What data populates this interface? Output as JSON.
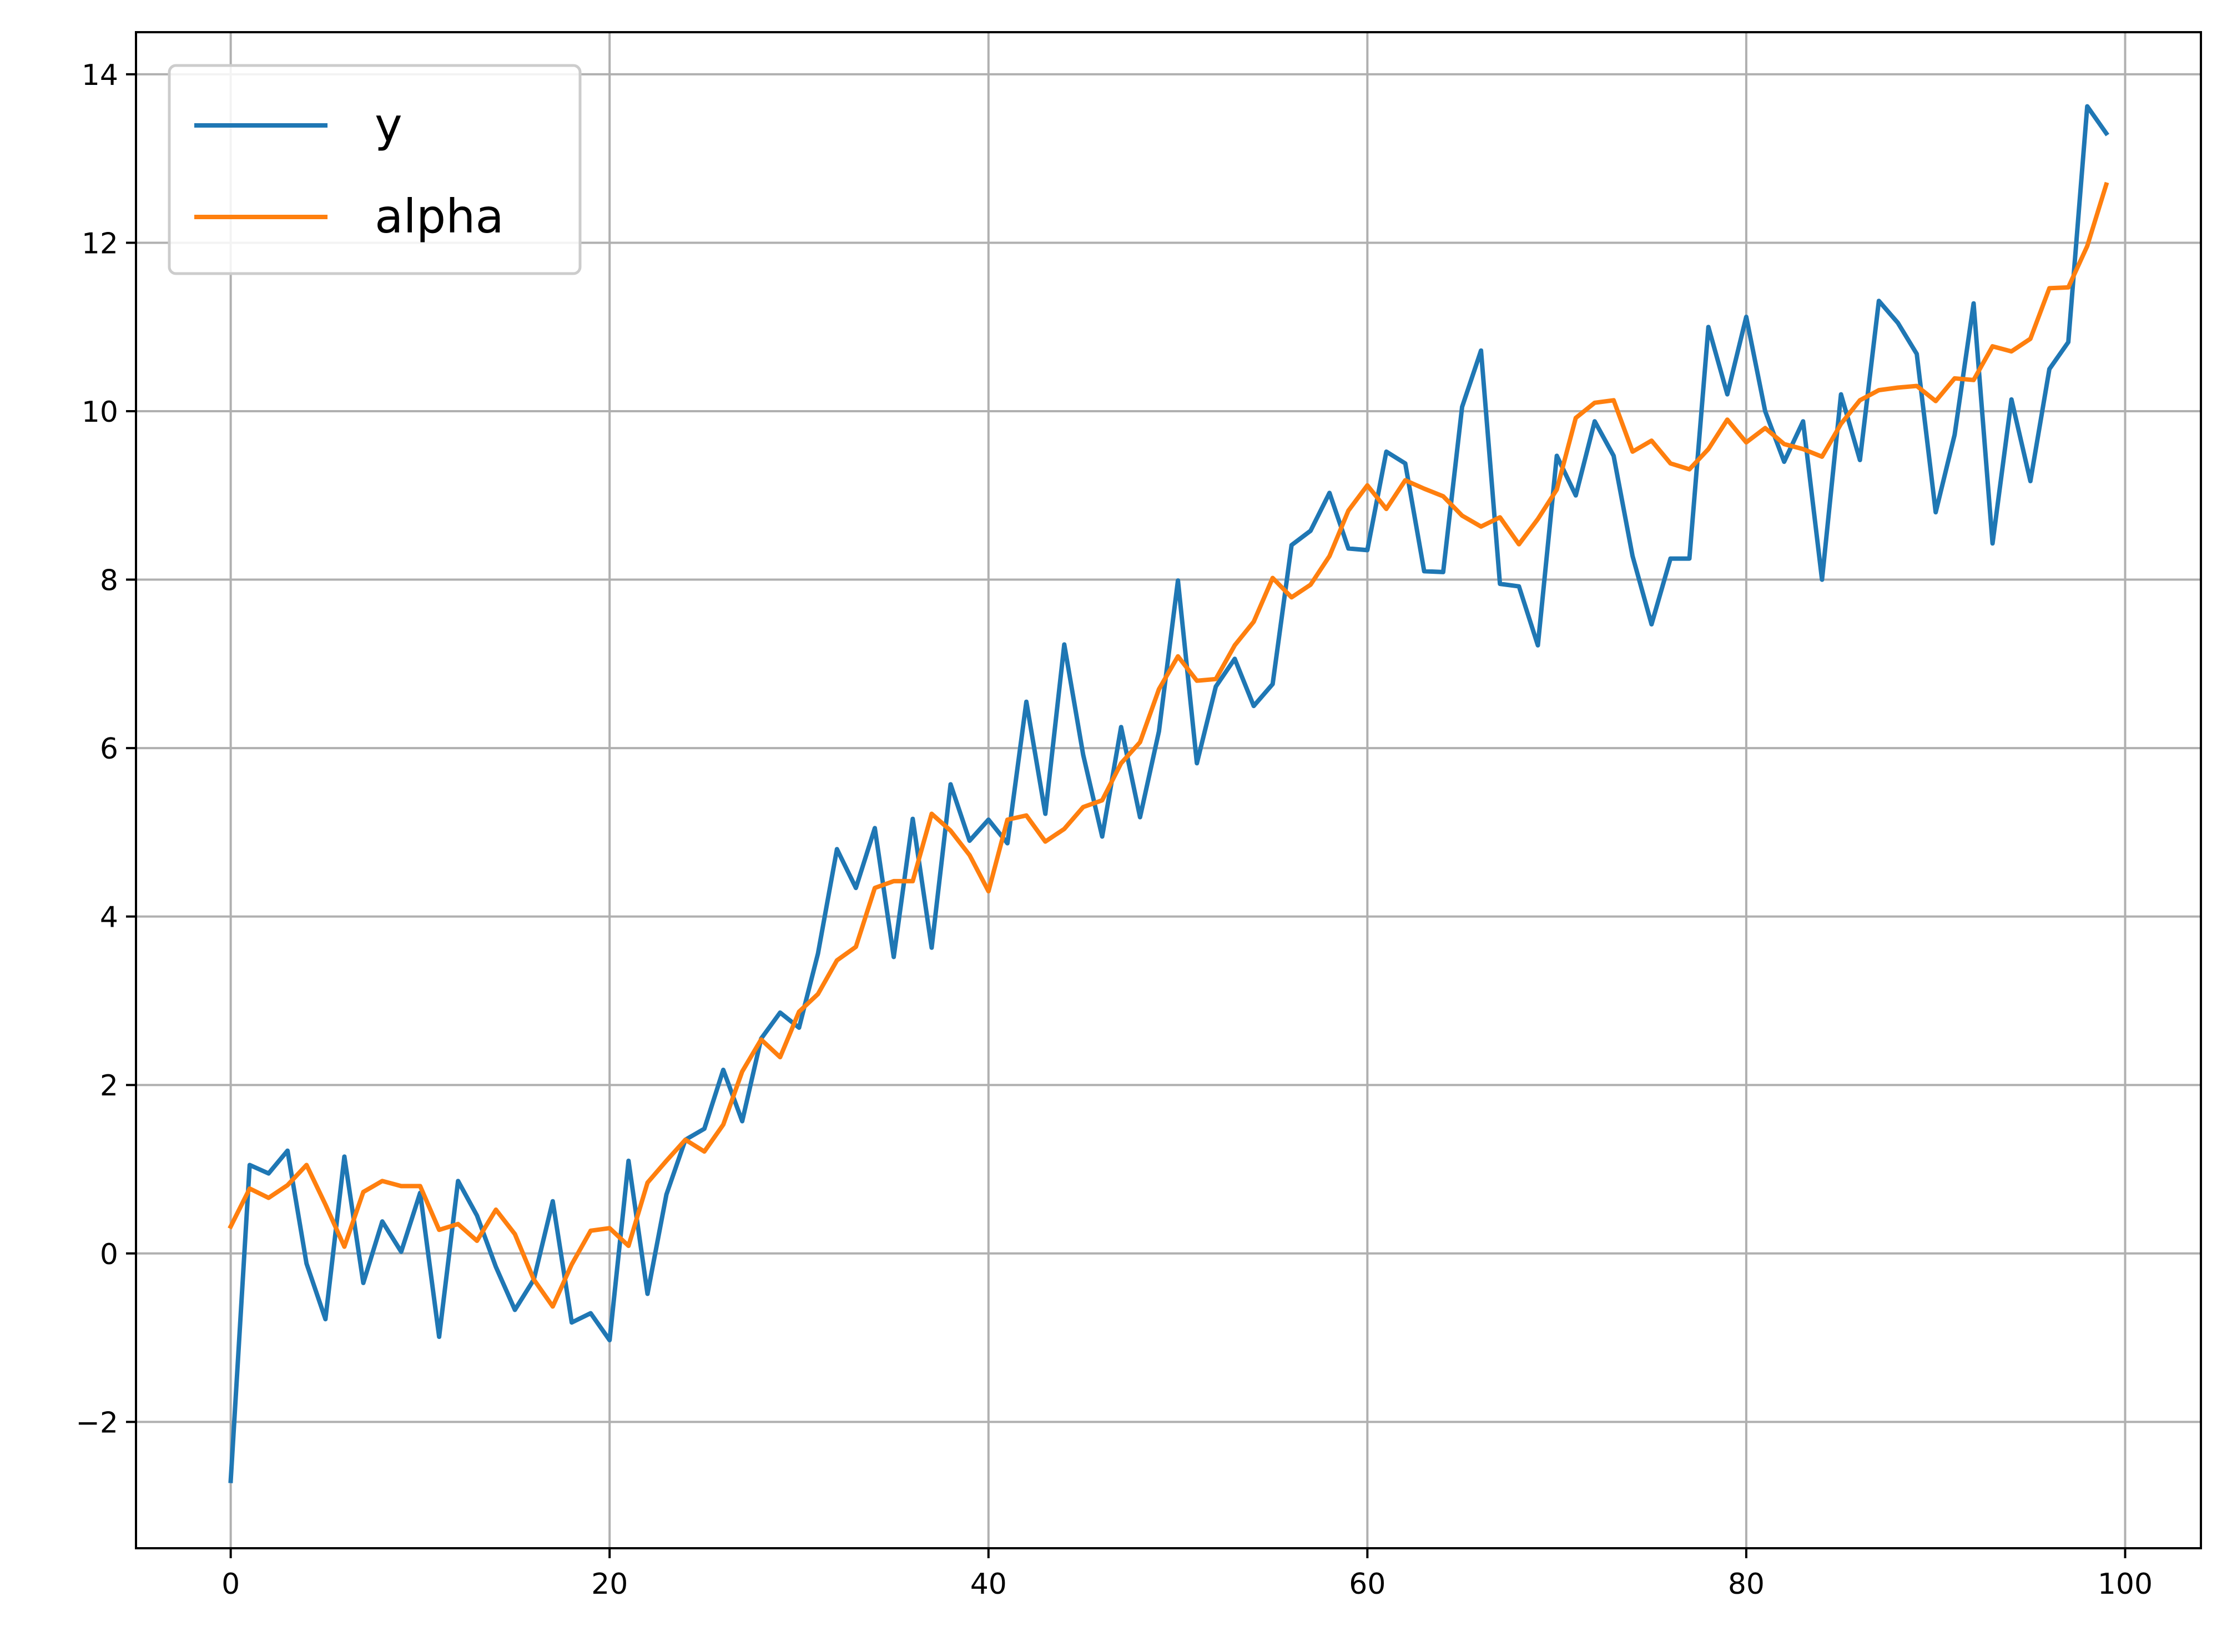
{
  "chart_data": {
    "type": "line",
    "title": "",
    "xlabel": "",
    "ylabel": "",
    "xlim": [
      -5,
      104
    ],
    "ylim": [
      -3.5,
      14.5
    ],
    "grid": true,
    "legend_position": "top-left",
    "x_ticks": [
      0,
      20,
      40,
      60,
      80,
      100
    ],
    "y_ticks": [
      -2,
      0,
      2,
      4,
      6,
      8,
      10,
      12,
      14
    ],
    "x_tick_labels": [
      "0",
      "20",
      "40",
      "60",
      "80",
      "100"
    ],
    "y_tick_labels": [
      "−2",
      "0",
      "2",
      "4",
      "6",
      "8",
      "10",
      "12",
      "14"
    ],
    "x": [
      0,
      1,
      2,
      3,
      4,
      5,
      6,
      7,
      8,
      9,
      10,
      11,
      12,
      13,
      14,
      15,
      16,
      17,
      18,
      19,
      20,
      21,
      22,
      23,
      24,
      25,
      26,
      27,
      28,
      29,
      30,
      31,
      32,
      33,
      34,
      35,
      36,
      37,
      38,
      39,
      40,
      41,
      42,
      43,
      44,
      45,
      46,
      47,
      48,
      49,
      50,
      51,
      52,
      53,
      54,
      55,
      56,
      57,
      58,
      59,
      60,
      61,
      62,
      63,
      64,
      65,
      66,
      67,
      68,
      69,
      70,
      71,
      72,
      73,
      74,
      75,
      76,
      77,
      78,
      79,
      80,
      81,
      82,
      83,
      84,
      85,
      86,
      87,
      88,
      89,
      90,
      91,
      92,
      93,
      94,
      95,
      96,
      97,
      98,
      99
    ],
    "series": [
      {
        "name": "y",
        "color": "#1f77b4",
        "values": [
          -2.7,
          1.05,
          0.95,
          1.22,
          -0.12,
          -0.78,
          1.15,
          -0.35,
          0.38,
          0.02,
          0.72,
          -0.99,
          0.86,
          0.45,
          -0.16,
          -0.67,
          -0.31,
          0.62,
          -0.82,
          -0.71,
          -1.03,
          1.1,
          -0.48,
          0.7,
          1.35,
          1.48,
          2.18,
          1.57,
          2.55,
          2.86,
          2.68,
          3.56,
          4.8,
          4.34,
          5.05,
          3.52,
          5.16,
          3.63,
          5.57,
          4.9,
          5.15,
          4.87,
          6.55,
          5.22,
          7.23,
          5.92,
          4.95,
          6.25,
          5.18,
          6.2,
          7.99,
          5.82,
          6.73,
          7.06,
          6.5,
          6.76,
          8.41,
          8.58,
          9.03,
          8.37,
          8.35,
          9.52,
          9.38,
          8.1,
          8.09,
          10.05,
          10.72,
          7.95,
          7.92,
          7.22,
          9.47,
          9.0,
          9.88,
          9.47,
          8.28,
          7.47,
          8.25,
          8.25,
          11.0,
          10.2,
          11.12,
          10.0,
          9.4,
          9.88,
          8.0,
          10.2,
          9.42,
          11.31,
          11.05,
          10.68,
          8.8,
          9.72,
          11.28,
          8.43,
          10.14,
          9.17,
          10.5,
          10.82,
          13.62,
          13.3
        ]
      },
      {
        "name": "alpha",
        "color": "#ff7f0e",
        "values": [
          0.32,
          0.77,
          0.66,
          0.81,
          1.05,
          0.58,
          0.08,
          0.73,
          0.86,
          0.8,
          0.8,
          0.28,
          0.35,
          0.15,
          0.52,
          0.23,
          -0.31,
          -0.63,
          -0.13,
          0.27,
          0.3,
          0.09,
          0.84,
          1.1,
          1.35,
          1.21,
          1.53,
          2.16,
          2.54,
          2.33,
          2.87,
          3.08,
          3.48,
          3.64,
          4.34,
          4.42,
          4.42,
          5.22,
          5.02,
          4.73,
          4.3,
          5.15,
          5.2,
          4.89,
          5.04,
          5.3,
          5.38,
          5.82,
          6.07,
          6.7,
          7.09,
          6.8,
          6.82,
          7.22,
          7.5,
          8.02,
          7.79,
          7.94,
          8.28,
          8.82,
          9.12,
          8.84,
          9.18,
          9.08,
          8.99,
          8.76,
          8.63,
          8.74,
          8.42,
          8.72,
          9.07,
          9.92,
          10.1,
          10.13,
          9.52,
          9.65,
          9.38,
          9.31,
          9.55,
          9.9,
          9.63,
          9.8,
          9.61,
          9.55,
          9.46,
          9.85,
          10.13,
          10.25,
          10.28,
          10.3,
          10.12,
          10.39,
          10.37,
          10.77,
          10.71,
          10.86,
          11.46,
          11.47,
          11.96,
          12.69
        ]
      }
    ]
  }
}
